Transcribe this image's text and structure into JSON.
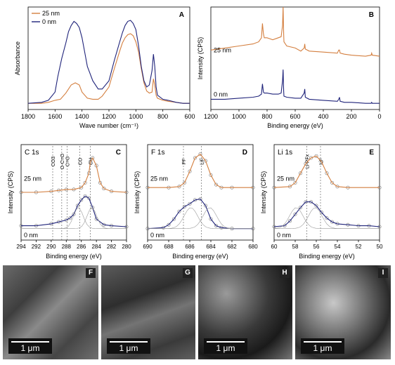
{
  "chart_data": [
    {
      "panel": "A",
      "type": "line",
      "xlabel": "Wave number (cm⁻¹)",
      "ylabel": "Absorbance",
      "xlim": [
        1800,
        600
      ],
      "xticks": [
        1800,
        1600,
        1400,
        1200,
        1000,
        800,
        600
      ],
      "legend": {
        "placement": "top-left",
        "entries": [
          "25 nm",
          "0 nm"
        ]
      },
      "series": [
        {
          "name": "25 nm",
          "color": "#d47f3f",
          "x": [
            1800,
            1700,
            1650,
            1600,
            1560,
            1520,
            1480,
            1450,
            1420,
            1400,
            1360,
            1320,
            1280,
            1250,
            1200,
            1160,
            1120,
            1100,
            1080,
            1060,
            1040,
            1020,
            1000,
            980,
            960,
            940,
            920,
            900,
            880,
            870,
            860,
            850,
            840,
            800,
            760,
            700,
            650,
            600
          ],
          "y": [
            0.06,
            0.06,
            0.07,
            0.09,
            0.1,
            0.16,
            0.24,
            0.26,
            0.24,
            0.17,
            0.11,
            0.1,
            0.1,
            0.13,
            0.22,
            0.4,
            0.57,
            0.65,
            0.7,
            0.73,
            0.74,
            0.72,
            0.66,
            0.56,
            0.4,
            0.26,
            0.18,
            0.16,
            0.17,
            0.3,
            0.24,
            0.14,
            0.11,
            0.09,
            0.08,
            0.07,
            0.06,
            0.06
          ]
        },
        {
          "name": "0 nm",
          "color": "#1f237a",
          "x": [
            1800,
            1700,
            1650,
            1600,
            1580,
            1550,
            1520,
            1500,
            1480,
            1460,
            1440,
            1420,
            1400,
            1380,
            1360,
            1320,
            1280,
            1250,
            1200,
            1160,
            1120,
            1100,
            1080,
            1060,
            1040,
            1020,
            1000,
            980,
            960,
            940,
            920,
            900,
            880,
            870,
            860,
            850,
            840,
            800,
            760,
            700,
            650,
            600
          ],
          "y": [
            0.06,
            0.07,
            0.09,
            0.17,
            0.32,
            0.5,
            0.65,
            0.76,
            0.82,
            0.86,
            0.84,
            0.8,
            0.7,
            0.56,
            0.42,
            0.28,
            0.2,
            0.2,
            0.28,
            0.48,
            0.66,
            0.75,
            0.82,
            0.86,
            0.87,
            0.84,
            0.78,
            0.62,
            0.42,
            0.28,
            0.22,
            0.24,
            0.38,
            0.54,
            0.42,
            0.22,
            0.14,
            0.1,
            0.09,
            0.07,
            0.06,
            0.06
          ]
        }
      ]
    },
    {
      "panel": "B",
      "type": "line",
      "xlabel": "Binding energy (eV)",
      "ylabel": "Intensity (CPS)",
      "xlim": [
        1200,
        0
      ],
      "xticks": [
        1200,
        1000,
        800,
        600,
        400,
        200,
        0
      ],
      "series": [
        {
          "name": "25 nm",
          "color": "#d47f3f",
          "x": [
            1200,
            1100,
            1000,
            900,
            860,
            840,
            833,
            826,
            820,
            800,
            760,
            720,
            700,
            690,
            686,
            682,
            680,
            660,
            600,
            560,
            536,
            532,
            528,
            500,
            400,
            300,
            290,
            285,
            280,
            250,
            200,
            100,
            60,
            56,
            52,
            0
          ],
          "y": [
            0.58,
            0.6,
            0.62,
            0.64,
            0.66,
            0.7,
            0.84,
            0.74,
            0.7,
            0.7,
            0.68,
            0.7,
            0.71,
            0.82,
            1.0,
            0.74,
            0.66,
            0.62,
            0.6,
            0.57,
            0.6,
            0.64,
            0.59,
            0.57,
            0.56,
            0.55,
            0.58,
            0.58,
            0.55,
            0.54,
            0.53,
            0.52,
            0.53,
            0.55,
            0.53,
            0.52
          ]
        },
        {
          "name": "0 nm",
          "color": "#1f237a",
          "x": [
            1200,
            1100,
            1000,
            900,
            860,
            840,
            833,
            826,
            820,
            800,
            760,
            720,
            700,
            690,
            686,
            682,
            680,
            660,
            600,
            560,
            536,
            532,
            528,
            500,
            400,
            300,
            290,
            285,
            280,
            250,
            200,
            100,
            60,
            56,
            52,
            0
          ],
          "y": [
            0.1,
            0.1,
            0.11,
            0.12,
            0.13,
            0.15,
            0.25,
            0.17,
            0.16,
            0.16,
            0.15,
            0.15,
            0.16,
            0.28,
            0.39,
            0.18,
            0.13,
            0.12,
            0.11,
            0.11,
            0.16,
            0.2,
            0.12,
            0.1,
            0.09,
            0.08,
            0.1,
            0.12,
            0.08,
            0.07,
            0.07,
            0.06,
            0.06,
            0.07,
            0.06,
            0.06
          ]
        }
      ],
      "annotations": [
        "25 nm",
        "0 nm"
      ]
    },
    {
      "panel": "C",
      "type": "line",
      "title": "C 1s",
      "xlabel": "Binding energy (eV)",
      "ylabel": "Intensity (CPS)",
      "xlim": [
        294,
        280
      ],
      "xticks": [
        294,
        292,
        290,
        288,
        286,
        284,
        282,
        280
      ],
      "references": [
        {
          "label": "CO3",
          "x": 289.8
        },
        {
          "label": "O-C=O",
          "x": 288.6
        },
        {
          "label": "C=O",
          "x": 287.9
        },
        {
          "label": "CO",
          "x": 286.2
        },
        {
          "label": "CH",
          "x": 284.8
        }
      ],
      "annotations": [
        "25 nm",
        "0 nm"
      ],
      "series": [
        {
          "name": "25 nm",
          "color": "#d47f3f",
          "x": [
            294,
            292,
            290,
            289,
            288,
            287,
            286,
            285.5,
            285,
            284.8,
            284.5,
            284,
            283.5,
            283,
            282,
            280
          ],
          "y": [
            0.5,
            0.5,
            0.51,
            0.52,
            0.53,
            0.53,
            0.55,
            0.6,
            0.7,
            0.82,
            0.86,
            0.78,
            0.6,
            0.54,
            0.51,
            0.5
          ]
        },
        {
          "name": "0 nm",
          "color": "#1f237a",
          "x": [
            294,
            292,
            290,
            289,
            288,
            287.5,
            287,
            286.5,
            286,
            285.5,
            285,
            284.5,
            284,
            283,
            282,
            280
          ],
          "y": [
            0.15,
            0.15,
            0.17,
            0.19,
            0.21,
            0.23,
            0.27,
            0.36,
            0.42,
            0.46,
            0.44,
            0.34,
            0.22,
            0.16,
            0.15,
            0.14
          ]
        }
      ]
    },
    {
      "panel": "D",
      "type": "line",
      "title": "F 1s",
      "xlabel": "Binding energy (eV)",
      "ylabel": "Intensity (CPS)",
      "xlim": [
        690,
        680
      ],
      "xticks": [
        690,
        688,
        686,
        684,
        682,
        680
      ],
      "references": [
        {
          "label": "PF",
          "x": 686.6
        },
        {
          "label": "LiF",
          "x": 684.9
        }
      ],
      "annotations": [
        "25 nm",
        "0 nm"
      ],
      "series": [
        {
          "name": "25 nm",
          "color": "#d47f3f",
          "x": [
            690,
            688,
            687,
            686.5,
            686,
            685.5,
            685,
            684.5,
            684,
            683.5,
            683,
            682,
            680
          ],
          "y": [
            0.55,
            0.55,
            0.56,
            0.6,
            0.72,
            0.86,
            0.9,
            0.83,
            0.68,
            0.58,
            0.55,
            0.55,
            0.55
          ]
        },
        {
          "name": "0 nm",
          "color": "#1f237a",
          "x": [
            690,
            688.5,
            688,
            687.5,
            687,
            686.5,
            686,
            685.5,
            685,
            684.5,
            684,
            683.5,
            683,
            682,
            680
          ],
          "y": [
            0.12,
            0.13,
            0.16,
            0.22,
            0.3,
            0.35,
            0.38,
            0.42,
            0.43,
            0.36,
            0.22,
            0.15,
            0.13,
            0.12,
            0.12
          ]
        }
      ]
    },
    {
      "panel": "E",
      "type": "scatter",
      "title": "Li 1s",
      "xlabel": "Binding energy (eV)",
      "ylabel": "Intensity (CPS)",
      "xlim": [
        60,
        50
      ],
      "xticks": [
        60,
        58,
        56,
        54,
        52,
        50
      ],
      "references": [
        {
          "label": "Li-PFx",
          "x": 56.9
        },
        {
          "label": "LiF",
          "x": 55.6
        }
      ],
      "annotations": [
        "25 nm",
        "0 nm"
      ],
      "series": [
        {
          "name": "25 nm",
          "color": "#d47f3f",
          "x": [
            60,
            58.5,
            58,
            57.5,
            57,
            56.5,
            56,
            55.5,
            55,
            54.5,
            54,
            53,
            50
          ],
          "y": [
            0.55,
            0.56,
            0.6,
            0.7,
            0.8,
            0.86,
            0.88,
            0.82,
            0.7,
            0.6,
            0.56,
            0.55,
            0.55
          ]
        },
        {
          "name": "0 nm",
          "color": "#1f237a",
          "x": [
            60,
            59,
            58.5,
            58,
            57.5,
            57,
            56.5,
            56,
            55.5,
            55,
            54.5,
            54,
            53,
            52,
            51,
            50
          ],
          "y": [
            0.14,
            0.15,
            0.2,
            0.27,
            0.34,
            0.4,
            0.4,
            0.36,
            0.29,
            0.23,
            0.19,
            0.17,
            0.16,
            0.15,
            0.15,
            0.14
          ]
        }
      ]
    }
  ],
  "sem_panels": [
    {
      "label": "F",
      "scale": "1 μm"
    },
    {
      "label": "G",
      "scale": "1 μm"
    },
    {
      "label": "H",
      "scale": "1 μm"
    },
    {
      "label": "I",
      "scale": "1 μm"
    }
  ]
}
